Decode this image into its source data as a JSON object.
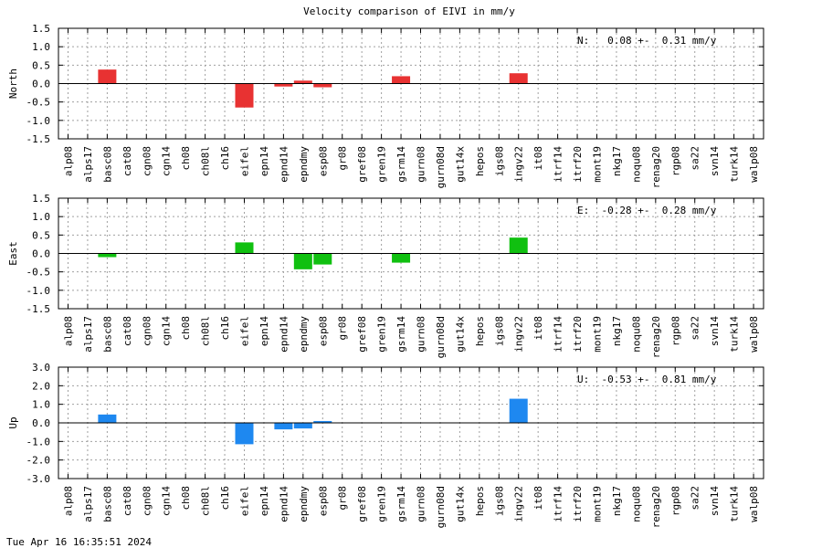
{
  "title": "Velocity comparison of EIVI in mm/y",
  "timestamp": "Tue Apr 16 16:35:51 2024",
  "chart_data": [
    {
      "type": "bar",
      "ylabel": "North",
      "ylim": [
        -1.5,
        1.5
      ],
      "yticks": [
        "1.5",
        "1.0",
        "0.5",
        "0.0",
        "-0.5",
        "-1.0",
        "-1.5"
      ],
      "ytick_values": [
        1.5,
        1.0,
        0.5,
        0.0,
        -0.5,
        -1.0,
        -1.5
      ],
      "grid": true,
      "color": "#e83232",
      "annotation": "N:   0.08 +-  0.31 mm/y",
      "categories": [
        "alp08",
        "alps17",
        "basc08",
        "cat08",
        "cgn08",
        "cgn14",
        "ch08",
        "ch08l",
        "ch16",
        "eifel",
        "epn14",
        "epnd14",
        "epndmy",
        "esp08",
        "gr08",
        "gref08",
        "gren19",
        "gsrm14",
        "gurn08",
        "gurn08d",
        "gut14x",
        "hepos",
        "igs08",
        "ingv22",
        "it08",
        "itrf14",
        "itrf20",
        "mont19",
        "nkg17",
        "noqu08",
        "renag20",
        "rgp08",
        "sa22",
        "svn14",
        "turk14",
        "walp08"
      ],
      "values": [
        null,
        null,
        0.38,
        null,
        null,
        null,
        null,
        null,
        null,
        -0.65,
        null,
        -0.08,
        0.08,
        -0.1,
        null,
        null,
        null,
        0.2,
        null,
        null,
        null,
        null,
        null,
        0.28,
        null,
        null,
        null,
        null,
        null,
        null,
        null,
        null,
        null,
        null,
        null,
        null
      ]
    },
    {
      "type": "bar",
      "ylabel": "East",
      "ylim": [
        -1.5,
        1.5
      ],
      "yticks": [
        "1.5",
        "1.0",
        "0.5",
        "0.0",
        "-0.5",
        "-1.0",
        "-1.5"
      ],
      "ytick_values": [
        1.5,
        1.0,
        0.5,
        0.0,
        -0.5,
        -1.0,
        -1.5
      ],
      "grid": true,
      "color": "#10c010",
      "annotation": "E:  -0.28 +-  0.28 mm/y",
      "categories": [
        "alp08",
        "alps17",
        "basc08",
        "cat08",
        "cgn08",
        "cgn14",
        "ch08",
        "ch08l",
        "ch16",
        "eifel",
        "epn14",
        "epnd14",
        "epndmy",
        "esp08",
        "gr08",
        "gref08",
        "gren19",
        "gsrm14",
        "gurn08",
        "gurn08d",
        "gut14x",
        "hepos",
        "igs08",
        "ingv22",
        "it08",
        "itrf14",
        "itrf20",
        "mont19",
        "nkg17",
        "noqu08",
        "renag20",
        "rgp08",
        "sa22",
        "svn14",
        "turk14",
        "walp08"
      ],
      "values": [
        null,
        null,
        -0.1,
        null,
        null,
        null,
        null,
        null,
        null,
        0.3,
        null,
        null,
        -0.43,
        -0.3,
        null,
        null,
        null,
        -0.25,
        null,
        null,
        null,
        null,
        null,
        0.43,
        null,
        null,
        null,
        null,
        null,
        null,
        null,
        null,
        null,
        null,
        null,
        null
      ]
    },
    {
      "type": "bar",
      "ylabel": "Up",
      "ylim": [
        -3.0,
        3.0
      ],
      "yticks": [
        "3.0",
        "2.0",
        "1.0",
        "0.0",
        "-1.0",
        "-2.0",
        "-3.0"
      ],
      "ytick_values": [
        3.0,
        2.0,
        1.0,
        0.0,
        -1.0,
        -2.0,
        -3.0
      ],
      "grid": true,
      "color": "#1e88f0",
      "annotation": "U:  -0.53 +-  0.81 mm/y",
      "categories": [
        "alp08",
        "alps17",
        "basc08",
        "cat08",
        "cgn08",
        "cgn14",
        "ch08",
        "ch08l",
        "ch16",
        "eifel",
        "epn14",
        "epnd14",
        "epndmy",
        "esp08",
        "gr08",
        "gref08",
        "gren19",
        "gsrm14",
        "gurn08",
        "gurn08d",
        "gut14x",
        "hepos",
        "igs08",
        "ingv22",
        "it08",
        "itrf14",
        "itrf20",
        "mont19",
        "nkg17",
        "noqu08",
        "renag20",
        "rgp08",
        "sa22",
        "svn14",
        "turk14",
        "walp08"
      ],
      "values": [
        null,
        null,
        0.45,
        null,
        null,
        null,
        null,
        null,
        null,
        -1.15,
        null,
        -0.35,
        -0.3,
        0.1,
        null,
        null,
        null,
        null,
        null,
        null,
        null,
        null,
        null,
        1.3,
        null,
        null,
        null,
        null,
        null,
        null,
        null,
        null,
        null,
        null,
        null,
        null
      ]
    }
  ]
}
